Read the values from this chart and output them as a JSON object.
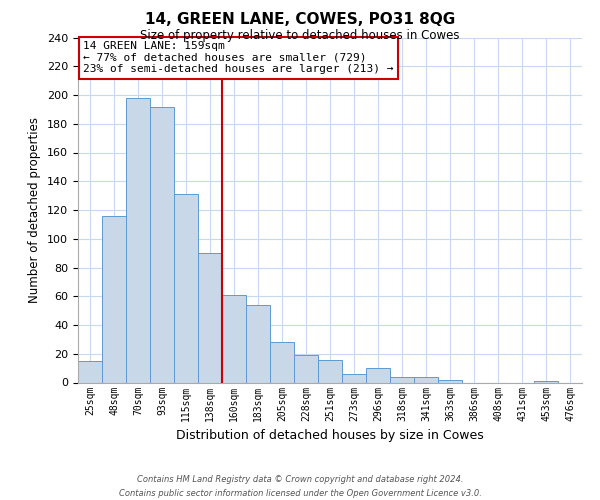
{
  "title": "14, GREEN LANE, COWES, PO31 8QG",
  "subtitle": "Size of property relative to detached houses in Cowes",
  "xlabel": "Distribution of detached houses by size in Cowes",
  "ylabel": "Number of detached properties",
  "bar_labels": [
    "25sqm",
    "48sqm",
    "70sqm",
    "93sqm",
    "115sqm",
    "138sqm",
    "160sqm",
    "183sqm",
    "205sqm",
    "228sqm",
    "251sqm",
    "273sqm",
    "296sqm",
    "318sqm",
    "341sqm",
    "363sqm",
    "386sqm",
    "408sqm",
    "431sqm",
    "453sqm",
    "476sqm"
  ],
  "bar_values": [
    15,
    116,
    198,
    192,
    131,
    90,
    61,
    54,
    28,
    19,
    16,
    6,
    10,
    4,
    4,
    2,
    0,
    0,
    0,
    1,
    0
  ],
  "bar_color": "#c8d8e8",
  "bar_edge_color": "#5b9bd5",
  "vline_index": 6,
  "vline_color": "#cc0000",
  "ylim": [
    0,
    240
  ],
  "yticks": [
    0,
    20,
    40,
    60,
    80,
    100,
    120,
    140,
    160,
    180,
    200,
    220,
    240
  ],
  "annotation_title": "14 GREEN LANE: 159sqm",
  "annotation_line1": "← 77% of detached houses are smaller (729)",
  "annotation_line2": "23% of semi-detached houses are larger (213) →",
  "annotation_box_color": "#ffffff",
  "annotation_box_edge": "#cc0000",
  "footer1": "Contains HM Land Registry data © Crown copyright and database right 2024.",
  "footer2": "Contains public sector information licensed under the Open Government Licence v3.0.",
  "background_color": "#ffffff",
  "grid_color": "#c8d8f0"
}
